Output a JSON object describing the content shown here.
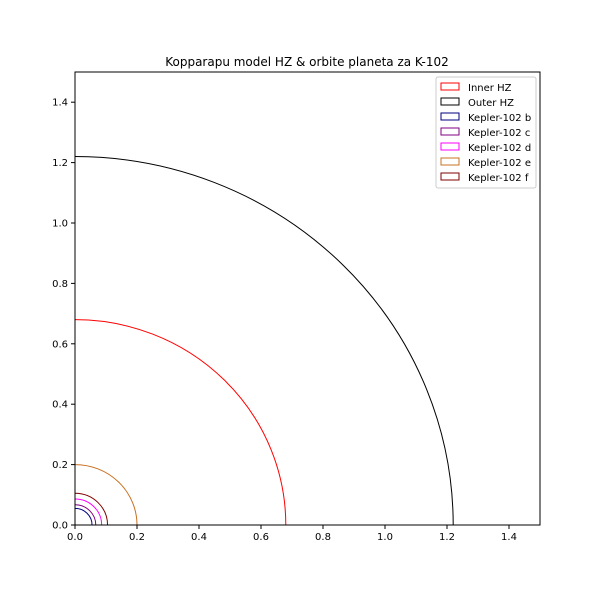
{
  "chart_data": {
    "type": "line",
    "title": "Kopparapu model HZ & orbite planeta za K-102",
    "xlabel": "",
    "ylabel": "",
    "xlim": [
      0,
      1.5
    ],
    "ylim": [
      0,
      1.5
    ],
    "xticks": [
      "0.0",
      "0.2",
      "0.4",
      "0.6",
      "0.8",
      "1.0",
      "1.2",
      "1.4"
    ],
    "yticks": [
      "0.0",
      "0.2",
      "0.4",
      "0.6",
      "0.8",
      "1.0",
      "1.2",
      "1.4"
    ],
    "grid": false,
    "legend_position": "top-right",
    "series": [
      {
        "name": "Inner HZ",
        "radius": 0.68,
        "color": "#ff0000"
      },
      {
        "name": "Outer HZ",
        "radius": 1.22,
        "color": "#000000"
      },
      {
        "name": "Kepler-102 b",
        "radius": 0.055,
        "color": "#000080"
      },
      {
        "name": "Kepler-102 c",
        "radius": 0.067,
        "color": "#800080"
      },
      {
        "name": "Kepler-102 d",
        "radius": 0.086,
        "color": "#ff00ff"
      },
      {
        "name": "Kepler-102 e",
        "radius": 0.2,
        "color": "#c87020"
      },
      {
        "name": "Kepler-102 f",
        "radius": 0.105,
        "color": "#800000"
      }
    ]
  }
}
